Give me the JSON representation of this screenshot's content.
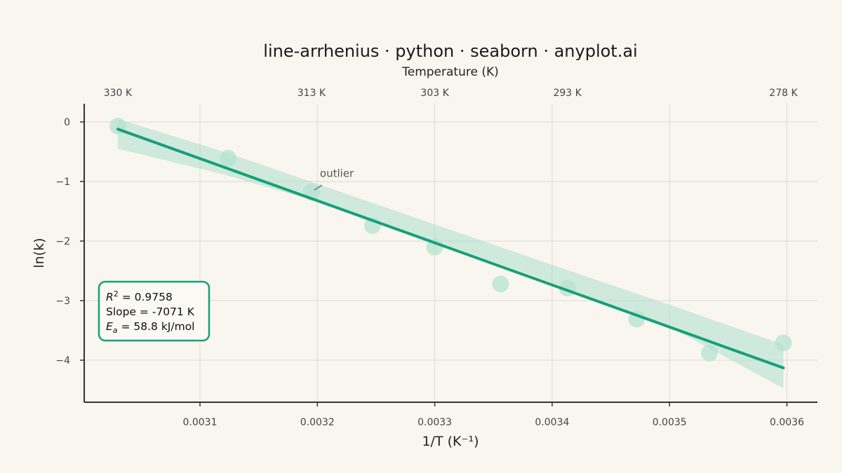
{
  "chart_data": {
    "type": "scatter",
    "title": "line-arrhenius · python · seaborn · anyplot.ai",
    "xlabel": "1/T (K⁻¹)",
    "ylabel": "ln(k)",
    "top_xlabel": "Temperature (K)",
    "xlim": [
      0.003,
      0.00363
    ],
    "ylim": [
      -4.7,
      0.3
    ],
    "x_ticks": [
      0.0031,
      0.0032,
      0.0033,
      0.0034,
      0.0035,
      0.0036
    ],
    "x_tick_labels": [
      "0.0031",
      "0.0032",
      "0.0033",
      "0.0034",
      "0.0035",
      "0.0036"
    ],
    "y_ticks": [
      0,
      -1,
      -2,
      -3,
      -4
    ],
    "y_tick_labels": [
      "0",
      "−1",
      "−2",
      "−3",
      "−4"
    ],
    "top_ticks": [
      {
        "label": "330 K",
        "x": 0.00303
      },
      {
        "label": "313 K",
        "x": 0.003195
      },
      {
        "label": "303 K",
        "x": 0.0033
      },
      {
        "label": "293 K",
        "x": 0.003413
      },
      {
        "label": "278 K",
        "x": 0.003597
      }
    ],
    "points": [
      {
        "x": 0.00303,
        "y": -0.07
      },
      {
        "x": 0.003124,
        "y": -0.61
      },
      {
        "x": 0.003195,
        "y": -1.18
      },
      {
        "x": 0.003247,
        "y": -1.74
      },
      {
        "x": 0.0033,
        "y": -2.1
      },
      {
        "x": 0.003356,
        "y": -2.72
      },
      {
        "x": 0.003413,
        "y": -2.79
      },
      {
        "x": 0.003472,
        "y": -3.31
      },
      {
        "x": 0.003534,
        "y": -3.88
      },
      {
        "x": 0.003597,
        "y": -3.71
      }
    ],
    "fit_line": {
      "x": [
        0.00303,
        0.003597
      ],
      "y": [
        -0.12,
        -4.13
      ]
    },
    "confidence_band": {
      "x": [
        0.00303,
        0.00312,
        0.0032,
        0.0033,
        0.0034,
        0.0035,
        0.003597
      ],
      "upper": [
        0.05,
        -0.5,
        -1.04,
        -1.72,
        -2.4,
        -3.07,
        -3.74
      ],
      "lower": [
        -0.45,
        -0.88,
        -1.34,
        -2.0,
        -2.7,
        -3.44,
        -4.47
      ]
    },
    "annotation": {
      "text": "outlier",
      "x": 0.003195,
      "y": -1.18
    },
    "grid": true,
    "colors": {
      "line": "#15a07a",
      "point": "#b5e2d1",
      "band": "#a6dcc8",
      "background": "#f9f6f0",
      "grid": "#dddad2",
      "axis": "#333333"
    }
  },
  "stats": {
    "r2_symbol": "R",
    "r2_exp": "2",
    "r2_value": " = 0.9758",
    "slope": "Slope = -7071 K",
    "ea_symbol": "E",
    "ea_sub": "a",
    "ea_value": " = 58.8 kJ/mol"
  }
}
